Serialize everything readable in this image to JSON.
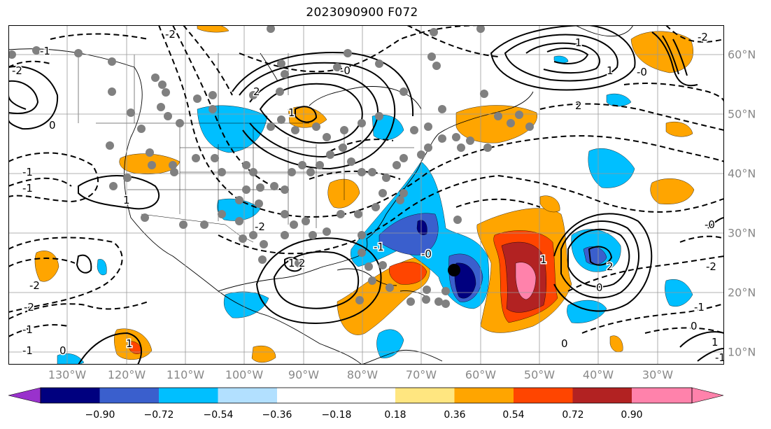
{
  "title": "2023090900 F072",
  "colors": {
    "levels": [
      "#9932cc",
      "#00007f",
      "#3a5fcd",
      "#00bfff",
      "#b2e0ff",
      "#ffffff",
      "#ffe680",
      "#ffa500",
      "#ff4500",
      "#b22222",
      "#ff82ab"
    ],
    "grid": "#999999",
    "contour": "#000000",
    "storm_marker": "#000000"
  },
  "longitude_labels": [
    "130°W",
    "120°W",
    "110°W",
    "100°W",
    "90°W",
    "80°W",
    "70°W",
    "60°W",
    "50°W",
    "40°W",
    "30°W"
  ],
  "latitude_labels": [
    "60°N",
    "50°N",
    "40°N",
    "30°N",
    "20°N",
    "10°N"
  ],
  "colorbar": {
    "ticks": [
      "−0.90",
      "−0.72",
      "−0.54",
      "−0.36",
      "−0.18",
      "0.18",
      "0.36",
      "0.54",
      "0.72",
      "0.90"
    ],
    "extend": "both"
  },
  "contour_labels": [
    "-1",
    "-2",
    "-2",
    "0",
    "-0",
    "-1",
    "1",
    "2",
    "-1",
    "1",
    "-2",
    "-2",
    "0",
    "1",
    "-2",
    "-1",
    "1",
    "-1",
    "-0",
    "0",
    "1",
    "0",
    "-1",
    "-2",
    "2",
    "-0",
    "1",
    "-0",
    "-2",
    "1",
    "-1",
    "1",
    "0",
    "2",
    "2",
    "-1"
  ]
}
